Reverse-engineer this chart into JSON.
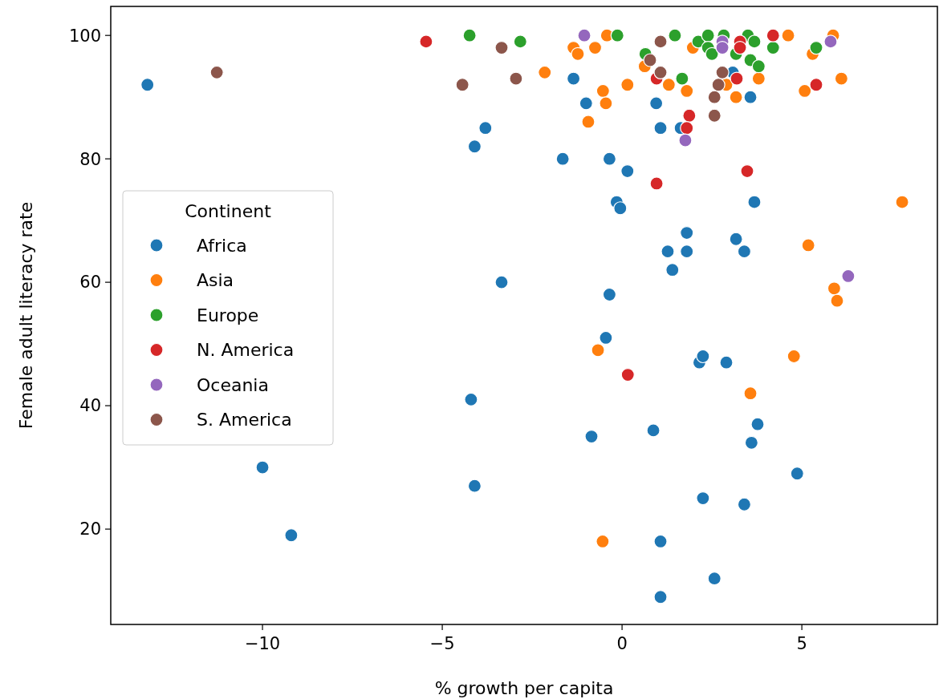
{
  "chart_data": {
    "type": "scatter",
    "xlabel": "% growth per capita",
    "ylabel": "Female adult literacy rate",
    "legend_title": "Continent",
    "legend": "left",
    "marker": "circle",
    "grid": false,
    "xlim": [
      -14.22,
      8.77
    ],
    "ylim": [
      4.55,
      104.7
    ],
    "xticks": [
      {
        "value": -10,
        "label": "−10"
      },
      {
        "value": -5,
        "label": "−5"
      },
      0,
      5
    ],
    "yticks": [
      20,
      40,
      60,
      80,
      100
    ],
    "series": [
      {
        "name": "Africa",
        "color": "#1f77b4",
        "x": [
          -13.2,
          -10,
          -9.2,
          -4.2,
          -4.1,
          -4.1,
          -3.8,
          -3.35,
          -1.65,
          -1.35,
          -1.0,
          -0.35,
          -0.15,
          -0.05,
          -0.35,
          -0.45,
          -0.85,
          0.15,
          0.95,
          1.07,
          0.87,
          1.07,
          1.07,
          1.63,
          1.8,
          1.8,
          1.27,
          1.4,
          2.15,
          2.25,
          2.9,
          2.25,
          2.57,
          3.17,
          3.4,
          3.57,
          3.08,
          3.68,
          3.77,
          3.6,
          3.4,
          4.87
        ],
        "values": [
          92,
          30,
          19,
          41,
          27,
          82,
          85,
          60,
          80,
          93,
          89,
          80,
          73,
          72,
          58,
          51,
          35,
          78,
          89,
          85,
          36,
          18,
          9,
          85,
          68,
          65,
          65,
          62,
          47,
          48,
          47,
          25,
          12,
          67,
          65,
          90,
          94,
          73,
          37,
          34,
          24,
          29
        ]
      },
      {
        "name": "Asia",
        "color": "#ff7f0e",
        "x": [
          -2.15,
          -1.35,
          -1.23,
          -0.75,
          -0.42,
          -0.53,
          -0.45,
          -0.94,
          0.15,
          1.97,
          0.63,
          1.3,
          1.8,
          2.9,
          3.17,
          3.8,
          4.62,
          5.87,
          5.3,
          5.08,
          6.1,
          7.79,
          5.18,
          5.9,
          5.98,
          4.78,
          3.57,
          -0.67,
          -0.54
        ],
        "values": [
          94,
          98,
          97,
          98,
          100,
          91,
          89,
          86,
          92,
          98,
          95,
          92,
          91,
          92,
          90,
          93,
          100,
          100,
          97,
          91,
          93,
          73,
          66,
          59,
          57,
          48,
          42,
          49,
          18
        ]
      },
      {
        "name": "Europe",
        "color": "#2ca02c",
        "x": [
          -4.24,
          -2.83,
          -0.13,
          1.47,
          0.65,
          1.67,
          2.12,
          2.39,
          2.39,
          2.5,
          2.83,
          3.17,
          3.5,
          3.68,
          3.57,
          3.8,
          4.2,
          5.4
        ],
        "values": [
          100,
          99,
          100,
          100,
          97,
          93,
          99,
          100,
          98,
          97,
          100,
          97,
          100,
          99,
          96,
          95,
          98,
          98
        ]
      },
      {
        "name": "N. America",
        "color": "#d62728",
        "x": [
          -5.45,
          4.2,
          3.28,
          3.28,
          3.19,
          5.4,
          0.96,
          1.87,
          1.8,
          3.48,
          0.96,
          0.16
        ],
        "values": [
          99,
          100,
          99,
          98,
          93,
          92,
          93,
          87,
          85,
          78,
          76,
          45
        ]
      },
      {
        "name": "Oceania",
        "color": "#9467bd",
        "x": [
          -1.05,
          2.79,
          2.79,
          5.8,
          1.76,
          6.29
        ],
        "values": [
          100,
          99,
          98,
          99,
          83,
          61
        ]
      },
      {
        "name": "S. America",
        "color": "#8c564b",
        "x": [
          -11.27,
          -3.35,
          -4.44,
          -2.95,
          1.07,
          0.78,
          1.07,
          2.79,
          2.68,
          2.57,
          2.57
        ],
        "values": [
          94,
          98,
          92,
          93,
          99,
          96,
          94,
          94,
          92,
          90,
          87
        ]
      }
    ]
  }
}
